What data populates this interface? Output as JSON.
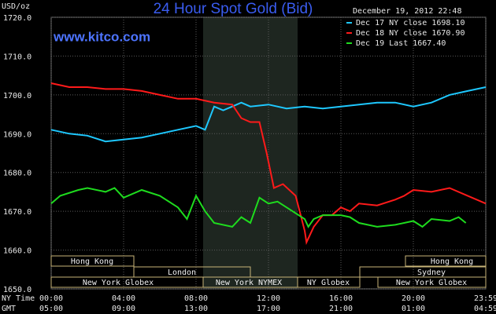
{
  "chart_data": {
    "type": "line",
    "title": "24 Hour Spot Gold (Bid)",
    "site": "www.kitco.com",
    "timestamp": "December 19, 2012 22:48",
    "ylabel": "USD/oz",
    "xlabel": "NY Time",
    "x2label": "GMT",
    "xlim": [
      0,
      24
    ],
    "ylim": [
      1650,
      1720
    ],
    "yticks": [
      {
        "value": 1650,
        "label": "1650.0"
      },
      {
        "value": 1660,
        "label": "1660.0"
      },
      {
        "value": 1670,
        "label": "1670.0"
      },
      {
        "value": 1680,
        "label": "1680.0"
      },
      {
        "value": 1690,
        "label": "1690.0"
      },
      {
        "value": 1700,
        "label": "1700.0"
      },
      {
        "value": 1710,
        "label": "1710.0"
      },
      {
        "value": 1720,
        "label": "1720.0"
      }
    ],
    "xticks": [
      {
        "value": 0,
        "label": "00:00"
      },
      {
        "value": 4,
        "label": "04:00"
      },
      {
        "value": 8,
        "label": "08:00"
      },
      {
        "value": 12,
        "label": "12:00"
      },
      {
        "value": 16,
        "label": "16:00"
      },
      {
        "value": 20,
        "label": "20:00"
      },
      {
        "value": 24,
        "label": "23:59"
      }
    ],
    "x2ticks": [
      {
        "value": 0,
        "label": "05:00"
      },
      {
        "value": 4,
        "label": "09:00"
      },
      {
        "value": 8,
        "label": "13:00"
      },
      {
        "value": 12,
        "label": "17:00"
      },
      {
        "value": 16,
        "label": "21:00"
      },
      {
        "value": 20,
        "label": "01:00"
      },
      {
        "value": 24,
        "label": "04:59"
      }
    ],
    "grid": true,
    "series": [
      {
        "name": "Dec 17 NY close 1698.10",
        "color": "#1ec8ff",
        "x": [
          0,
          1,
          2,
          3,
          4,
          5,
          6,
          7,
          8,
          8.5,
          9,
          9.5,
          10,
          10.5,
          11,
          12,
          13,
          14,
          15,
          16,
          17,
          18,
          19,
          20,
          21,
          22,
          23,
          24
        ],
        "values": [
          1691,
          1690,
          1689.5,
          1688,
          1688.5,
          1689,
          1690,
          1691,
          1692,
          1691,
          1697,
          1696,
          1697,
          1698,
          1697,
          1697.5,
          1696.5,
          1697,
          1696.5,
          1697,
          1697.5,
          1698,
          1698,
          1697,
          1698,
          1700,
          1701,
          1702
        ]
      },
      {
        "name": "Dec 18 NY close 1670.90",
        "color": "#ff1a1a",
        "x": [
          0,
          1,
          2,
          3,
          4,
          5,
          6,
          7,
          8,
          9,
          10,
          10.5,
          11,
          11.5,
          11.9,
          12.3,
          12.8,
          13.5,
          14,
          14.1,
          14.5,
          15,
          15.5,
          16,
          16.5,
          17,
          18,
          19,
          19.5,
          20,
          21,
          22,
          23,
          24
        ],
        "values": [
          1703,
          1702,
          1702,
          1701.5,
          1701.5,
          1701,
          1700,
          1699,
          1699,
          1698,
          1697.5,
          1694,
          1693,
          1693,
          1685,
          1676,
          1677,
          1674,
          1665,
          1662,
          1666,
          1669,
          1669,
          1671,
          1670,
          1672,
          1671.5,
          1673,
          1674,
          1675.5,
          1675,
          1676,
          1674,
          1672
        ]
      },
      {
        "name": "Dec 19 Last 1667.40",
        "color": "#1edc1e",
        "x": [
          0,
          0.5,
          1.5,
          2,
          3,
          3.5,
          4,
          5,
          6,
          7,
          7.5,
          8,
          8.5,
          9,
          10,
          10.5,
          11,
          11.5,
          12,
          12.5,
          13,
          14,
          14.2,
          14.5,
          15,
          16,
          16.5,
          17,
          18,
          19,
          20,
          20.5,
          21,
          22,
          22.5,
          22.9
        ],
        "values": [
          1672,
          1674,
          1675.5,
          1676,
          1675,
          1676,
          1673.5,
          1675.5,
          1674,
          1671,
          1668,
          1674,
          1670,
          1667,
          1666,
          1668.5,
          1667,
          1673.5,
          1672,
          1672.5,
          1671,
          1668,
          1666,
          1668,
          1669,
          1669,
          1668.5,
          1667,
          1666,
          1666.5,
          1667.5,
          1666,
          1668,
          1667.5,
          1668.5,
          1667
        ]
      }
    ]
  },
  "sessions": [
    "Hong Kong",
    "Hong Kong",
    "London",
    "Sydney",
    "New York Globex",
    "New York NYMEX",
    "NY Globex",
    "New York Globex"
  ]
}
